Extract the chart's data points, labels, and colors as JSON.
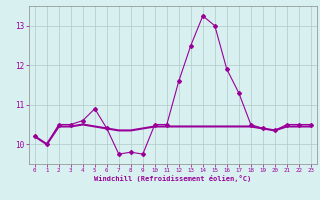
{
  "x": [
    0,
    1,
    2,
    3,
    4,
    5,
    6,
    7,
    8,
    9,
    10,
    11,
    12,
    13,
    14,
    15,
    16,
    17,
    18,
    19,
    20,
    21,
    22,
    23
  ],
  "line1": [
    10.2,
    10.0,
    10.5,
    10.5,
    10.6,
    10.9,
    10.4,
    9.75,
    9.8,
    9.75,
    10.5,
    10.5,
    11.6,
    12.5,
    13.25,
    13.0,
    11.9,
    11.3,
    10.5,
    10.4,
    10.35,
    10.5,
    10.5,
    10.5
  ],
  "line2": [
    10.2,
    10.0,
    10.45,
    10.45,
    10.5,
    10.45,
    10.4,
    10.35,
    10.35,
    10.4,
    10.45,
    10.45,
    10.45,
    10.45,
    10.45,
    10.45,
    10.45,
    10.45,
    10.45,
    10.4,
    10.35,
    10.45,
    10.45,
    10.45
  ],
  "line_color": "#990099",
  "bg_color": "#d8f0f0",
  "grid_color": "#b0c8c8",
  "xlabel": "Windchill (Refroidissement éolien,°C)",
  "ylim": [
    9.5,
    13.5
  ],
  "xlim": [
    -0.5,
    23.5
  ],
  "yticks": [
    10,
    11,
    12,
    13
  ],
  "xticks": [
    0,
    1,
    2,
    3,
    4,
    5,
    6,
    7,
    8,
    9,
    10,
    11,
    12,
    13,
    14,
    15,
    16,
    17,
    18,
    19,
    20,
    21,
    22,
    23
  ]
}
